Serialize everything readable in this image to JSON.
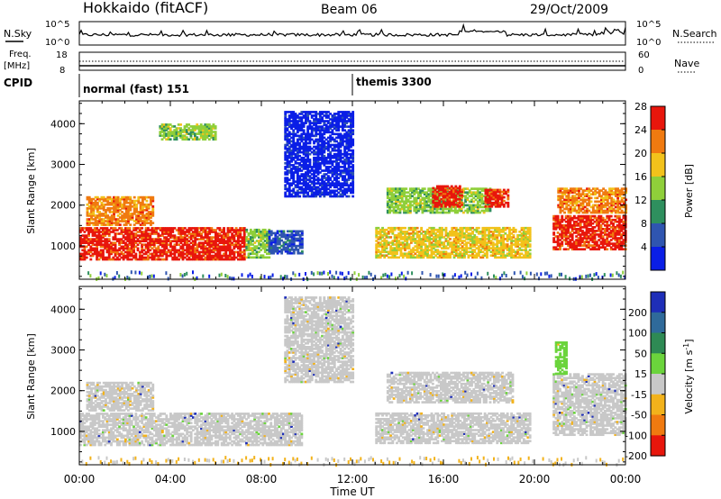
{
  "header": {
    "site": "Hokkaido (fitACF)",
    "beam": "Beam 06",
    "date": "29/Oct/2009"
  },
  "top_panels": {
    "nsky_label": "N.Sky",
    "nsky_ticks": [
      "10^5",
      "10^0"
    ],
    "nsearch_label": "N.Search",
    "freq_label": "Freq.",
    "freq_unit": "[MHz]",
    "freq_ticks": [
      "18",
      "8"
    ],
    "nave_label": "Nave",
    "nave_ticks": [
      "60",
      "0"
    ],
    "cpid_label": "CPID",
    "cpid_segments": [
      {
        "label": "normal (fast) 151",
        "start_hour": 0
      },
      {
        "label": "themis 3300",
        "start_hour": 12
      }
    ]
  },
  "x_axis": {
    "label": "Time UT",
    "ticks": [
      "00:00",
      "04:00",
      "08:00",
      "12:00",
      "16:00",
      "20:00",
      "00:00"
    ],
    "range_hours": [
      0,
      24
    ]
  },
  "chart_data": [
    {
      "type": "heatmap",
      "parameter": "power",
      "ylabel": "Slant Range [km]",
      "ylim": [
        180,
        4560
      ],
      "yticks": [
        "1000",
        "2000",
        "3000",
        "4000"
      ],
      "colorbar": {
        "label": "Power [dB]",
        "ticks": [
          "4",
          "8",
          "12",
          "16",
          "20",
          "24",
          "28"
        ],
        "range": [
          0,
          30
        ],
        "colors": [
          "#0a1ee6",
          "#2f55b0",
          "#2e8f5e",
          "#8fcf3a",
          "#f2c21b",
          "#f07a10",
          "#e8160c"
        ]
      },
      "regions": [
        {
          "t": [
            0.0,
            7.2
          ],
          "r": [
            650,
            1450
          ],
          "level": 6
        },
        {
          "t": [
            0.3,
            3.2
          ],
          "r": [
            1500,
            2200
          ],
          "level": 5
        },
        {
          "t": [
            7.3,
            8.3
          ],
          "r": [
            700,
            1400
          ],
          "level": 3
        },
        {
          "t": [
            8.3,
            9.8
          ],
          "r": [
            800,
            1350
          ],
          "level": 1
        },
        {
          "t": [
            9.0,
            12.0
          ],
          "r": [
            2200,
            4300
          ],
          "level": 0
        },
        {
          "t": [
            3.5,
            6.0
          ],
          "r": [
            3600,
            4000
          ],
          "level": 3
        },
        {
          "t": [
            13.0,
            19.8
          ],
          "r": [
            700,
            1450
          ],
          "level": 4
        },
        {
          "t": [
            13.5,
            18.0
          ],
          "r": [
            1800,
            2400
          ],
          "level": 3
        },
        {
          "t": [
            15.5,
            16.8
          ],
          "r": [
            1950,
            2450
          ],
          "level": 6
        },
        {
          "t": [
            17.8,
            18.8
          ],
          "r": [
            1950,
            2400
          ],
          "level": 6
        },
        {
          "t": [
            20.8,
            24.0
          ],
          "r": [
            900,
            1750
          ],
          "level": 6
        },
        {
          "t": [
            21.0,
            24.0
          ],
          "r": [
            1800,
            2400
          ],
          "level": 5
        }
      ]
    },
    {
      "type": "heatmap",
      "parameter": "velocity",
      "ylabel": "Slant Range [km]",
      "ylim": [
        180,
        4560
      ],
      "yticks": [
        "1000",
        "2000",
        "3000",
        "4000"
      ],
      "colorbar": {
        "label": "Velocity [m s^-1]",
        "ticks": [
          "200",
          "100",
          "50",
          "15",
          "-15",
          "-50",
          "-100",
          "-200"
        ],
        "range": [
          -250,
          250
        ],
        "colors": [
          "#1e2eb8",
          "#2f6a9a",
          "#2e8a54",
          "#6bd43c",
          "#c8c8c8",
          "#f2b21b",
          "#f07a10",
          "#e8160c"
        ]
      },
      "regions": [
        {
          "t": [
            0.0,
            9.8
          ],
          "r": [
            650,
            1450
          ],
          "level": 4
        },
        {
          "t": [
            0.3,
            3.2
          ],
          "r": [
            1500,
            2200
          ],
          "level": 4
        },
        {
          "t": [
            9.0,
            12.0
          ],
          "r": [
            2200,
            4300
          ],
          "level": 4
        },
        {
          "t": [
            13.0,
            19.8
          ],
          "r": [
            700,
            1450
          ],
          "level": 4
        },
        {
          "t": [
            13.5,
            19.0
          ],
          "r": [
            1700,
            2450
          ],
          "level": 4
        },
        {
          "t": [
            20.8,
            24.0
          ],
          "r": [
            900,
            2400
          ],
          "level": 4
        },
        {
          "t": [
            20.9,
            21.4
          ],
          "r": [
            2400,
            3200
          ],
          "level": 3
        }
      ]
    }
  ]
}
